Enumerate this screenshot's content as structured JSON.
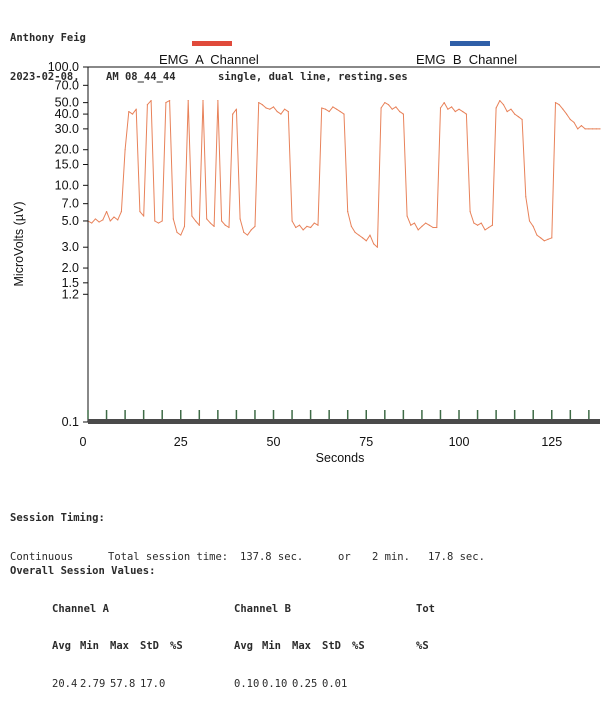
{
  "header": {
    "name": "Anthony Feig",
    "date": "2023-02-08,",
    "time": "AM 08_44_44",
    "session_file": "single, dual line, resting.ses"
  },
  "legend": {
    "channel_a": {
      "label": "EMG  A  Channel",
      "color": "#e04a3b"
    },
    "channel_b": {
      "label": "EMG  B  Channel",
      "color": "#2f5fa8"
    }
  },
  "chart_data": {
    "type": "line",
    "xlabel": "Seconds",
    "ylabel": "MicroVolts (µV)",
    "xlim": [
      0,
      138
    ],
    "ylim": [
      0.1,
      100
    ],
    "y_scale": "log",
    "x_ticks": [
      0,
      25,
      50,
      75,
      100,
      125
    ],
    "y_ticks": [
      "100.0",
      "70.0",
      "50.0",
      "40.0",
      "30.0",
      "20.0",
      "15.0",
      "10.0",
      "7.0",
      "5.0",
      "3.0",
      "2.0",
      "1.5",
      "1.2",
      "0.1"
    ],
    "line_color": "#e8825a",
    "series": [
      {
        "name": "EMG  A  Channel",
        "x": [
          0,
          1,
          2,
          3,
          4,
          5,
          6,
          7,
          8,
          9,
          10,
          11,
          12,
          13,
          14,
          15,
          16,
          17,
          18,
          19,
          20,
          21,
          22,
          23,
          24,
          25,
          26,
          27,
          28,
          29,
          30,
          31,
          32,
          33,
          34,
          35,
          36,
          37,
          38,
          39,
          40,
          41,
          42,
          43,
          44,
          45,
          46,
          47,
          48,
          49,
          50,
          51,
          52,
          53,
          54,
          55,
          56,
          57,
          58,
          59,
          60,
          61,
          62,
          63,
          64,
          65,
          66,
          67,
          68,
          69,
          70,
          71,
          72,
          73,
          74,
          75,
          76,
          77,
          78,
          79,
          80,
          81,
          82,
          83,
          84,
          85,
          86,
          87,
          88,
          89,
          90,
          91,
          92,
          93,
          94,
          95,
          96,
          97,
          98,
          99,
          100,
          101,
          102,
          103,
          104,
          105,
          106,
          107,
          108,
          109,
          110,
          111,
          112,
          113,
          114,
          115,
          116,
          117,
          118,
          119,
          120,
          121,
          122,
          123,
          124,
          125,
          126,
          127,
          128,
          129,
          130,
          131,
          132,
          133,
          134,
          135,
          136,
          137,
          138
        ],
        "y": [
          5.0,
          4.8,
          5.2,
          4.9,
          5.1,
          6.0,
          5.0,
          5.4,
          5.1,
          6.0,
          20.0,
          42.0,
          40.0,
          44.0,
          6.0,
          5.5,
          48.0,
          52.0,
          5.0,
          4.8,
          5.0,
          50.0,
          52.0,
          5.2,
          4.0,
          3.8,
          4.5,
          52.0,
          5.5,
          5.0,
          4.6,
          52.0,
          5.2,
          4.8,
          4.5,
          52.0,
          5.0,
          4.6,
          4.4,
          40.0,
          44.0,
          5.2,
          4.0,
          3.8,
          4.2,
          4.5,
          50.0,
          48.0,
          45.0,
          44.0,
          46.0,
          42.0,
          40.0,
          44.0,
          42.0,
          5.0,
          4.4,
          4.6,
          4.2,
          4.5,
          4.4,
          4.8,
          4.6,
          45.0,
          44.0,
          42.0,
          46.0,
          44.0,
          42.0,
          40.0,
          6.0,
          4.5,
          4.0,
          3.8,
          3.6,
          3.4,
          3.8,
          3.2,
          3.0,
          45.0,
          50.0,
          48.0,
          44.0,
          46.0,
          42.0,
          40.0,
          5.5,
          4.6,
          4.8,
          4.2,
          4.5,
          4.8,
          4.6,
          4.4,
          4.4,
          45.0,
          50.0,
          44.0,
          46.0,
          42.0,
          44.0,
          42.0,
          40.0,
          6.0,
          4.8,
          4.6,
          4.8,
          4.2,
          4.4,
          4.6,
          45.0,
          52.0,
          48.0,
          42.0,
          44.0,
          40.0,
          38.0,
          36.0,
          8.0,
          5.0,
          4.5,
          3.8,
          3.6,
          3.4,
          3.5,
          3.6,
          50.0,
          48.0,
          44.0,
          40.0,
          36.0,
          34.0,
          30.0,
          32.0,
          30.0,
          30.0,
          30.0,
          30.0,
          30.0
        ]
      }
    ]
  },
  "timing": {
    "title": "Session Timing:",
    "mode": "Continuous",
    "total_label": "Total session time:",
    "total_sec": "137.8 sec.",
    "or": "or",
    "minutes": "2 min.",
    "seconds": "17.8 sec."
  },
  "session_values": {
    "title": "Overall Session Values:",
    "channel_a": "Channel A",
    "channel_b": "Channel B",
    "tot": "Tot",
    "cols": [
      "Avg",
      "Min",
      "Max",
      "StD",
      "%S"
    ],
    "tot_col": "%S",
    "channel_a_values": [
      "20.4",
      "2.79",
      "57.8",
      "17.0",
      ""
    ],
    "channel_b_values": [
      "0.10",
      "0.10",
      "0.25",
      "0.01",
      ""
    ]
  }
}
